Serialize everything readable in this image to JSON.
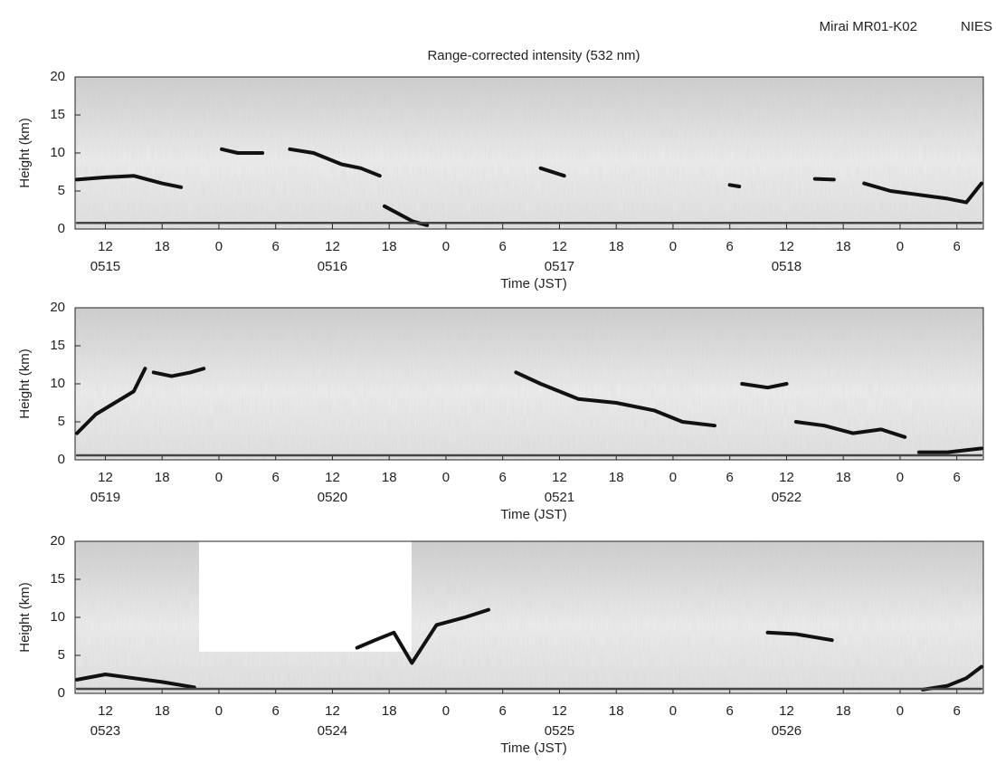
{
  "header": [
    "Mirai MR01-K02",
    "NIES"
  ],
  "chart_data": [
    {
      "type": "line",
      "title": "Range-corrected intensity  (532 nm)",
      "ylabel": "Height (km)",
      "xlabel": "Time (JST)",
      "xlim": [
        8.8,
        104.8
      ],
      "ylim": [
        0,
        20
      ],
      "yticks": [
        0,
        5,
        10,
        15,
        20
      ],
      "xticks": [
        {
          "value": 12,
          "label": "12"
        },
        {
          "value": 18,
          "label": "18"
        },
        {
          "value": 24,
          "label": "0"
        },
        {
          "value": 30,
          "label": "6"
        },
        {
          "value": 36,
          "label": "12"
        },
        {
          "value": 42,
          "label": "18"
        },
        {
          "value": 48,
          "label": "0"
        },
        {
          "value": 54,
          "label": "6"
        },
        {
          "value": 60,
          "label": "12"
        },
        {
          "value": 66,
          "label": "18"
        },
        {
          "value": 72,
          "label": "0"
        },
        {
          "value": 78,
          "label": "6"
        },
        {
          "value": 84,
          "label": "12"
        },
        {
          "value": 90,
          "label": "18"
        },
        {
          "value": 96,
          "label": "0"
        },
        {
          "value": 102,
          "label": "6"
        }
      ],
      "date_ticks": [
        {
          "value": 12,
          "label": "0515"
        },
        {
          "value": 36,
          "label": "0516"
        },
        {
          "value": 60,
          "label": "0517"
        },
        {
          "value": 84,
          "label": "0518"
        }
      ],
      "series": [
        {
          "color": "#111111",
          "x": [
            9,
            12,
            15,
            18,
            20,
            20.5,
            24.3,
            26,
            28.6,
            29,
            31.5,
            34,
            37,
            39,
            41,
            41.2,
            41.5,
            43,
            44.5,
            46,
            47,
            58,
            60.5,
            61,
            78,
            79,
            80,
            87,
            89,
            90,
            92.2,
            95,
            98,
            101,
            103,
            104.6
          ],
          "values": [
            6.5,
            6.8,
            7,
            6,
            5.5,
            null,
            10.5,
            10,
            10,
            null,
            10.5,
            10,
            8.5,
            8,
            7,
            null,
            3,
            2,
            1,
            0.5,
            null,
            8,
            7,
            null,
            5.8,
            5.6,
            null,
            6.6,
            6.5,
            null,
            6,
            5,
            4.5,
            4,
            3.5,
            6
          ]
        },
        {
          "color": "#444444",
          "x": [
            9,
            104.6
          ],
          "values": [
            0.8,
            0.8
          ]
        }
      ]
    },
    {
      "type": "line",
      "ylabel": "Height (km)",
      "xlabel": "Time (JST)",
      "xlim": [
        8.8,
        104.8
      ],
      "ylim": [
        0,
        20
      ],
      "yticks": [
        0,
        5,
        10,
        15,
        20
      ],
      "xticks": [
        {
          "value": 12,
          "label": "12"
        },
        {
          "value": 18,
          "label": "18"
        },
        {
          "value": 24,
          "label": "0"
        },
        {
          "value": 30,
          "label": "6"
        },
        {
          "value": 36,
          "label": "12"
        },
        {
          "value": 42,
          "label": "18"
        },
        {
          "value": 48,
          "label": "0"
        },
        {
          "value": 54,
          "label": "6"
        },
        {
          "value": 60,
          "label": "12"
        },
        {
          "value": 66,
          "label": "18"
        },
        {
          "value": 72,
          "label": "0"
        },
        {
          "value": 78,
          "label": "6"
        },
        {
          "value": 84,
          "label": "12"
        },
        {
          "value": 90,
          "label": "18"
        },
        {
          "value": 96,
          "label": "0"
        },
        {
          "value": 102,
          "label": "6"
        }
      ],
      "date_ticks": [
        {
          "value": 12,
          "label": "0519"
        },
        {
          "value": 36,
          "label": "0520"
        },
        {
          "value": 60,
          "label": "0521"
        },
        {
          "value": 84,
          "label": "0522"
        }
      ],
      "series": [
        {
          "color": "#111111",
          "x": [
            9,
            11,
            13,
            15,
            16.2,
            16.6,
            17.1,
            19,
            21,
            22.4,
            30,
            55.4,
            58,
            62,
            66,
            70,
            73,
            76.4,
            77,
            79.3,
            82,
            84,
            84.5,
            85,
            88,
            91,
            94,
            96.5,
            97,
            98,
            101,
            104.6
          ],
          "values": [
            3.5,
            6,
            7.5,
            9,
            12,
            null,
            11.5,
            11,
            11.5,
            12,
            null,
            11.5,
            10,
            8,
            7.5,
            6.5,
            5,
            4.5,
            null,
            10,
            9.5,
            10,
            null,
            5,
            4.5,
            3.5,
            4,
            3,
            null,
            1,
            1,
            1.5
          ]
        },
        {
          "color": "#444444",
          "x": [
            9,
            104.6
          ],
          "values": [
            0.6,
            0.6
          ]
        }
      ]
    },
    {
      "type": "line",
      "ylabel": "Height (km)",
      "xlabel": "Time (JST)",
      "xlim": [
        8.8,
        104.8
      ],
      "ylim": [
        0,
        20
      ],
      "yticks": [
        0,
        5,
        10,
        15,
        20
      ],
      "xticks": [
        {
          "value": 12,
          "label": "12"
        },
        {
          "value": 18,
          "label": "18"
        },
        {
          "value": 24,
          "label": "0"
        },
        {
          "value": 30,
          "label": "6"
        },
        {
          "value": 36,
          "label": "12"
        },
        {
          "value": 42,
          "label": "18"
        },
        {
          "value": 48,
          "label": "0"
        },
        {
          "value": 54,
          "label": "6"
        },
        {
          "value": 60,
          "label": "12"
        },
        {
          "value": 66,
          "label": "18"
        },
        {
          "value": 72,
          "label": "0"
        },
        {
          "value": 78,
          "label": "6"
        },
        {
          "value": 84,
          "label": "12"
        },
        {
          "value": 90,
          "label": "18"
        },
        {
          "value": 96,
          "label": "0"
        },
        {
          "value": 102,
          "label": "6"
        }
      ],
      "date_ticks": [
        {
          "value": 12,
          "label": "0523"
        },
        {
          "value": 36,
          "label": "0524"
        },
        {
          "value": 60,
          "label": "0525"
        },
        {
          "value": 84,
          "label": "0526"
        }
      ],
      "series": [
        {
          "color": "#111111",
          "x": [
            9,
            12,
            15,
            18,
            21.4,
            30,
            38.6,
            40.5,
            42.5,
            44.4,
            47,
            50,
            52.5,
            60,
            82,
            85,
            88.8,
            95,
            98.4,
            101,
            103,
            104.6
          ],
          "values": [
            1.8,
            2.5,
            2,
            1.5,
            0.8,
            null,
            6,
            7,
            8,
            4,
            9,
            10,
            11,
            null,
            8,
            7.8,
            7,
            null,
            0.5,
            1,
            2,
            3.5
          ]
        },
        {
          "color": "#444444",
          "x": [
            9,
            104.6
          ],
          "values": [
            0.6,
            0.6
          ]
        }
      ]
    }
  ]
}
